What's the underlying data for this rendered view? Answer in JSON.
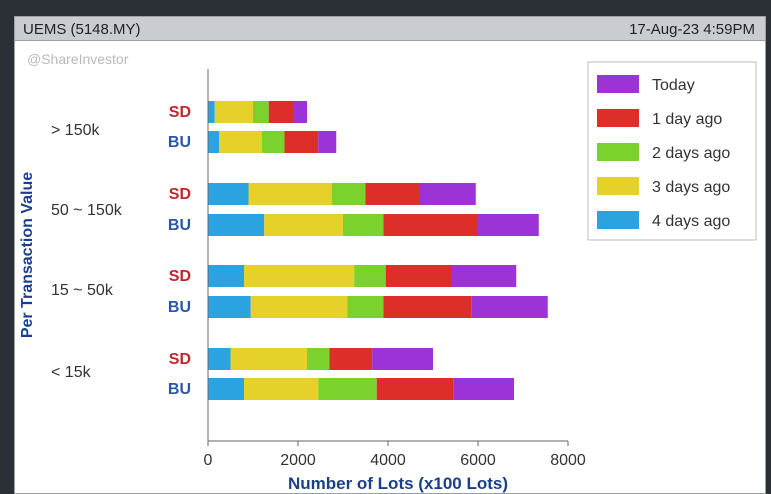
{
  "header": {
    "stock": "UEMS (5148.MY)",
    "timestamp": "17-Aug-23 4:59PM",
    "watermark": "@ShareInvestor"
  },
  "colors": {
    "today": "#9b33d6",
    "1_day_ago": "#de2e2a",
    "2_days_ago": "#7cd22c",
    "3_days_ago": "#e6d02a",
    "4_days_ago": "#2aa3e0",
    "sd_label": "#c0272d",
    "bu_label": "#2b57a8",
    "ylabel": "#1b3f8c"
  },
  "chart_data": {
    "type": "bar",
    "orientation": "horizontal",
    "stacked": true,
    "xlabel": "Number of Lots (x100 Lots)",
    "ylabel": "Per Transaction Value",
    "xlim": [
      0,
      8000
    ],
    "xticks": [
      0,
      2000,
      4000,
      6000,
      8000
    ],
    "xtick_labels": [
      "0",
      "2000",
      "4000",
      "6000",
      "8000"
    ],
    "groups": [
      "> 150k",
      "50 ~ 150k",
      "15 ~ 50k",
      "< 15k"
    ],
    "bar_labels": [
      "SD",
      "BU"
    ],
    "categories": [
      "> 150k SD",
      "> 150k BU",
      "50 ~ 150k SD",
      "50 ~ 150k BU",
      "15 ~ 50k SD",
      "15 ~ 50k BU",
      "< 15k SD",
      "< 15k BU"
    ],
    "legend": [
      "Today",
      "1 day ago",
      "2 days ago",
      "3 days ago",
      "4 days ago"
    ],
    "legend_position": "top-right",
    "series": [
      {
        "name": "4 days ago",
        "color": "#2aa3e0",
        "values": [
          150,
          250,
          900,
          1250,
          800,
          950,
          500,
          800
        ]
      },
      {
        "name": "3 days ago",
        "color": "#e6d02a",
        "values": [
          850,
          950,
          1850,
          1750,
          2450,
          2150,
          1700,
          1650
        ]
      },
      {
        "name": "2 days ago",
        "color": "#7cd22c",
        "values": [
          350,
          500,
          750,
          900,
          700,
          800,
          500,
          1300
        ]
      },
      {
        "name": "1 day ago",
        "color": "#de2e2a",
        "values": [
          550,
          750,
          1200,
          2100,
          1450,
          1950,
          950,
          1700
        ]
      },
      {
        "name": "Today",
        "color": "#9b33d6",
        "values": [
          300,
          400,
          1250,
          1350,
          1450,
          1700,
          1350,
          1350
        ]
      }
    ],
    "grid": false
  }
}
